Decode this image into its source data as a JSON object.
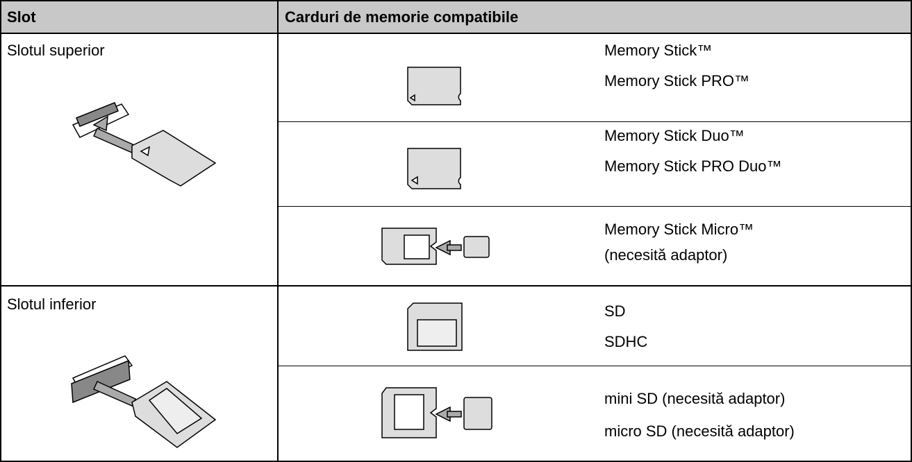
{
  "table": {
    "header": [
      "Slot",
      "Carduri de memorie compatibile"
    ],
    "groups": [
      {
        "slot": "Slotul superior",
        "cards": [
          [
            "Memory Stick™",
            "Memory Stick PRO™"
          ],
          [
            "Memory Stick Duo™",
            "Memory Stick PRO Duo™"
          ],
          [
            "Memory Stick Micro™",
            "(necesită adaptor)"
          ]
        ]
      },
      {
        "slot": "Slotul inferior",
        "cards": [
          [
            "SD",
            "SDHC"
          ],
          [
            "mini SD (necesită adaptor)",
            "micro SD (necesită adaptor)"
          ]
        ]
      }
    ]
  }
}
